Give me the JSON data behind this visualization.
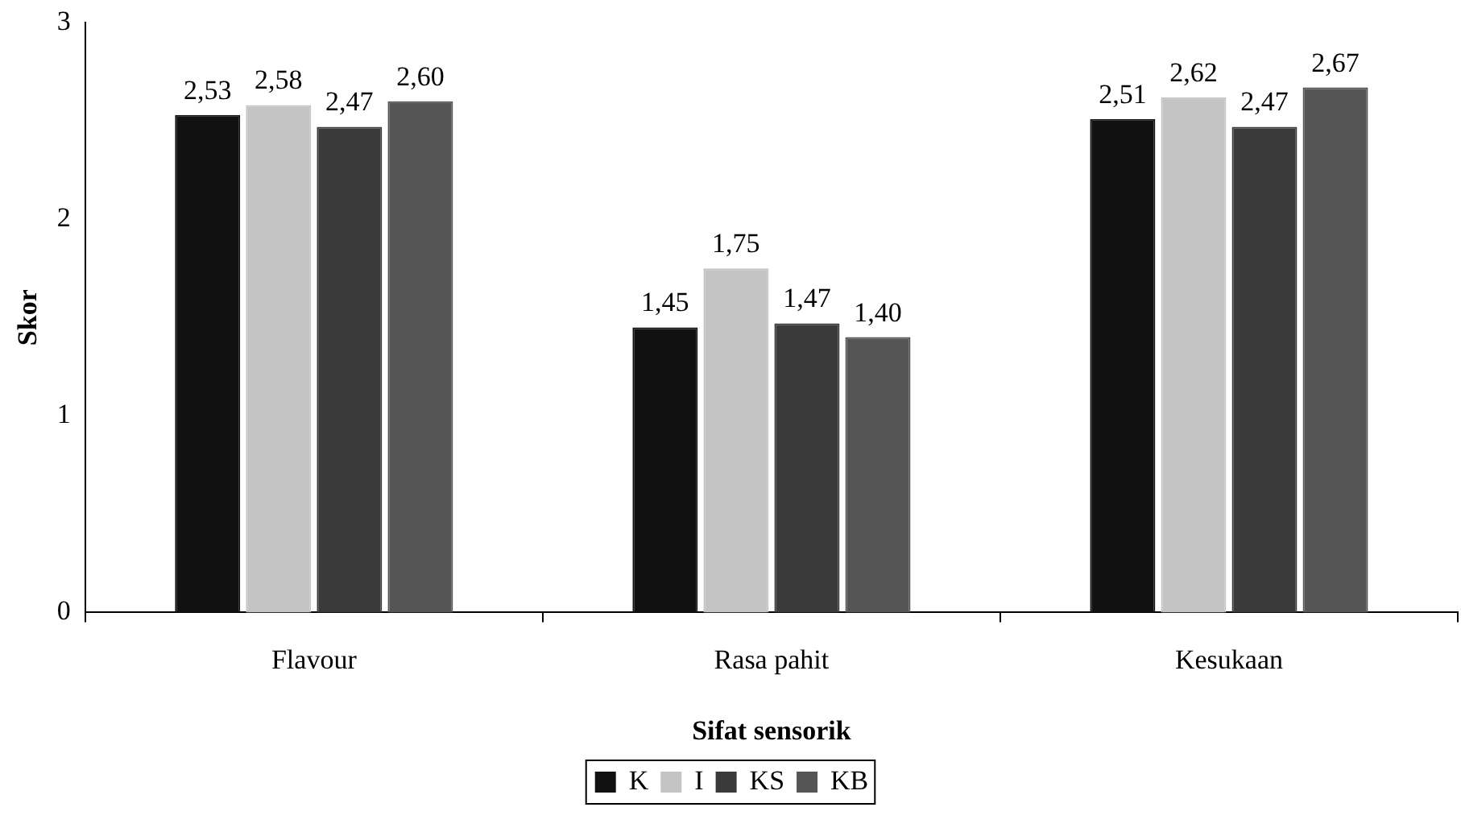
{
  "chart_data": {
    "type": "bar",
    "xlabel": "Sifat sensorik",
    "ylabel": "Skor",
    "categories": [
      "Flavour",
      "Rasa pahit",
      "Kesukaan"
    ],
    "series": [
      {
        "name": "K",
        "color": "#111111",
        "values": [
          2.53,
          1.45,
          2.51
        ],
        "value_labels": [
          "2,53",
          "1,45",
          "2,51"
        ]
      },
      {
        "name": "I",
        "color": "#c4c4c4",
        "values": [
          2.58,
          1.75,
          2.62
        ],
        "value_labels": [
          "2,58",
          "1,75",
          "2,62"
        ]
      },
      {
        "name": "KS",
        "color": "#3a3a3a",
        "values": [
          2.47,
          1.47,
          2.47
        ],
        "value_labels": [
          "2,47",
          "1,47",
          "2,47"
        ]
      },
      {
        "name": "KB",
        "color": "#555555",
        "values": [
          2.6,
          1.4,
          2.67
        ],
        "value_labels": [
          "2,60",
          "1,40",
          "2,67"
        ]
      }
    ],
    "ylim": [
      0,
      3
    ],
    "yticks": [
      0,
      1,
      2,
      3
    ],
    "grid": false,
    "legend": "bottom"
  }
}
